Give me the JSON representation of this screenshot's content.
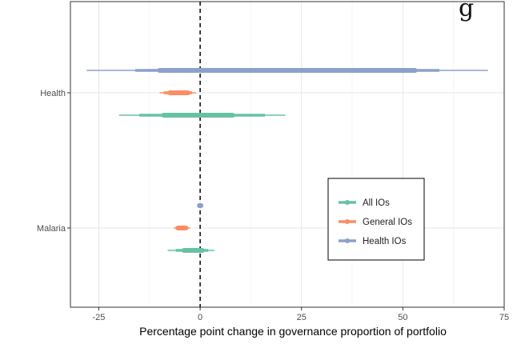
{
  "chart_data": {
    "type": "forest",
    "title": "",
    "xlabel": "Percentage point change in governance proportion of portfolio",
    "ylabel": "",
    "xlim": [
      -32,
      75
    ],
    "xticks": [
      -25,
      0,
      25,
      50,
      75
    ],
    "xtick_labels": [
      "-25",
      "0",
      "25",
      "50",
      "75"
    ],
    "reference_line": 0,
    "categories": [
      "Health",
      "Malaria"
    ],
    "grid": true,
    "legend_position": "right",
    "legend": [
      "All IOs",
      "General IOs",
      "Health IOs"
    ],
    "series": [
      {
        "name": "Health IOs",
        "color": "#8da0cb",
        "intervals": [
          {
            "category": "Health",
            "estimate": 21.5,
            "inner": [
              -10,
              53
            ],
            "mid": [
              -16,
              59
            ],
            "outer": [
              -28,
              71
            ]
          },
          {
            "category": "Malaria",
            "estimate": 0,
            "inner": [
              -0.2,
              0.2
            ],
            "mid": [
              -0.3,
              0.3
            ],
            "outer": [
              -0.4,
              0.4
            ]
          }
        ]
      },
      {
        "name": "General IOs",
        "color": "#fc8d62",
        "intervals": [
          {
            "category": "Health",
            "estimate": -5,
            "inner": [
              -7.5,
              -3
            ],
            "mid": [
              -9,
              -2
            ],
            "outer": [
              -10,
              -1
            ]
          },
          {
            "category": "Malaria",
            "estimate": -4.5,
            "inner": [
              -5.5,
              -3.5
            ],
            "mid": [
              -6,
              -3
            ],
            "outer": [
              -6.5,
              -2.5
            ]
          }
        ]
      },
      {
        "name": "All IOs",
        "color": "#66c2a5",
        "intervals": [
          {
            "category": "Health",
            "estimate": 0.5,
            "inner": [
              -9,
              8
            ],
            "mid": [
              -15,
              16
            ],
            "outer": [
              -20,
              21
            ]
          },
          {
            "category": "Malaria",
            "estimate": -1.5,
            "inner": [
              -4,
              0.5
            ],
            "mid": [
              -6,
              2
            ],
            "outer": [
              -8,
              3.5
            ]
          }
        ]
      }
    ]
  },
  "clipped_text": "g"
}
